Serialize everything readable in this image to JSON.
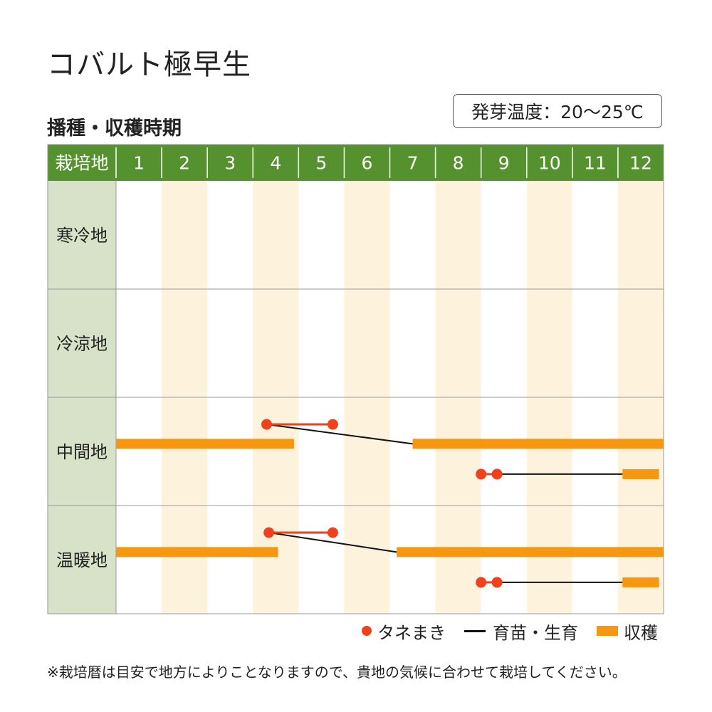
{
  "title": "コバルト極早生",
  "subtitle": "播種・収穫時期",
  "germination_temp": "発芽温度：20〜25℃",
  "colors": {
    "header_bg": "#55922f",
    "region_bg": "#d7e2c8",
    "stripe": "#fdf3dc",
    "sowing": "#f0401c",
    "growing": "#111111",
    "harvest": "#f7960f",
    "border": "#9a9a9a"
  },
  "chart_data": {
    "type": "gantt",
    "header_label": "栽培地",
    "months": [
      "1",
      "2",
      "3",
      "4",
      "5",
      "6",
      "7",
      "8",
      "9",
      "10",
      "11",
      "12"
    ],
    "regions": [
      {
        "name": "寒冷地",
        "tracks": []
      },
      {
        "name": "冷涼地",
        "tracks": []
      },
      {
        "name": "中間地",
        "tracks": [
          {
            "sowing": [
              4.3,
              5.75
            ],
            "harvest": [
              [
                1.0,
                4.9
              ],
              [
                7.5,
                13.0
              ]
            ],
            "growing": [
              [
                4.3,
                7.5
              ]
            ]
          },
          {
            "sowing": [
              9.0,
              9.35
            ],
            "harvest": [
              [
                12.1,
                12.9
              ]
            ],
            "growing": [
              [
                9.35,
                12.1
              ]
            ]
          }
        ]
      },
      {
        "name": "温暖地",
        "tracks": [
          {
            "sowing": [
              4.35,
              5.75
            ],
            "harvest": [
              [
                1.0,
                4.55
              ],
              [
                7.15,
                13.0
              ]
            ],
            "growing": [
              [
                4.35,
                7.15
              ]
            ]
          },
          {
            "sowing": [
              9.0,
              9.35
            ],
            "harvest": [
              [
                12.1,
                12.9
              ]
            ],
            "growing": [
              [
                9.35,
                12.1
              ]
            ]
          }
        ]
      }
    ]
  },
  "legend": {
    "sowing": "タネまき",
    "growing": "育苗・生育",
    "harvest": "収穫"
  },
  "note": "※栽培暦は目安で地方によりことなりますので、貴地の気候に合わせて栽培してください。"
}
